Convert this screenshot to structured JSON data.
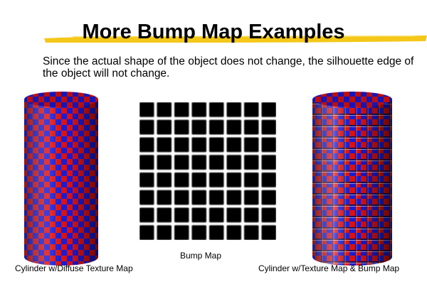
{
  "slide": {
    "title": "More Bump Map Examples",
    "subtitle": "Since the actual shape of the object does not change, the silhouette edge of the object will not change."
  },
  "figures": {
    "left_caption": "Cylinder w/Diffuse Texture Map",
    "middle_caption": "Bump Map",
    "right_caption": "Cylinder w/Texture Map & Bump Map"
  },
  "colors": {
    "highlight": "#f3c40c",
    "checker_red": "#e01010",
    "checker_blue": "#1a1ad8",
    "bump_tile": "#000000"
  },
  "bump_map": {
    "rows": 8,
    "cols": 8
  }
}
